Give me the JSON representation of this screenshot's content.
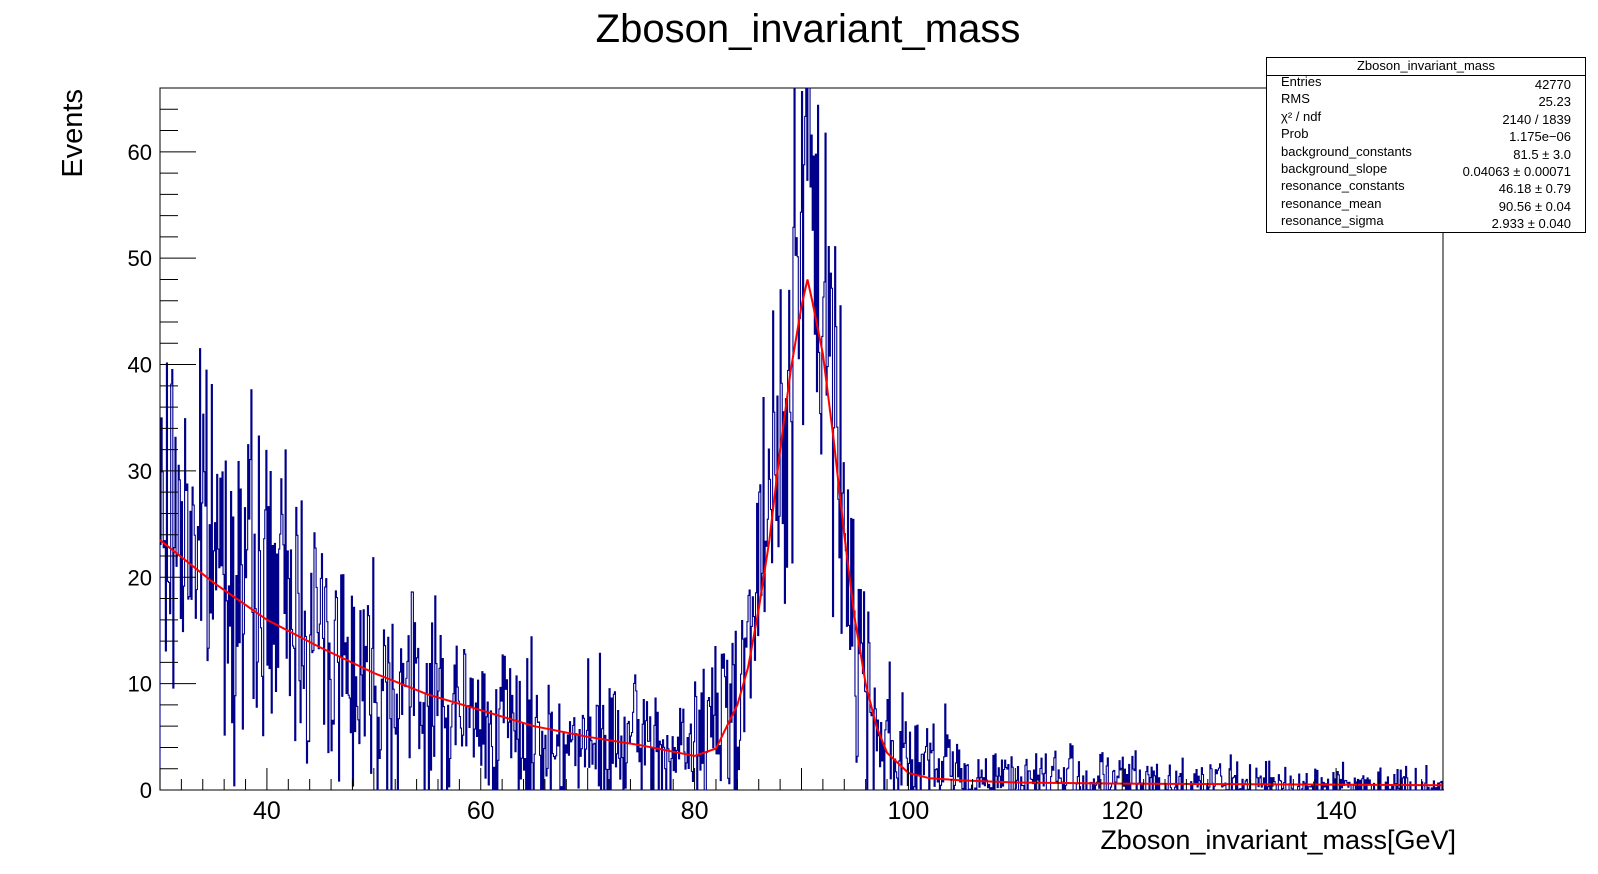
{
  "chart_data": {
    "type": "histogram",
    "title": "Zboson_invariant_mass",
    "xlabel": "Zboson_invariant_mass[GeV]",
    "ylabel": "Events",
    "xlim": [
      30,
      150
    ],
    "ylim": [
      0,
      66
    ],
    "x_ticks": [
      40,
      60,
      80,
      100,
      120,
      140
    ],
    "y_ticks": [
      0,
      10,
      20,
      30,
      40,
      50,
      60
    ],
    "histogram_color": "#00008b",
    "fit_color": "#ff0000",
    "series": [
      {
        "kind": "histogram",
        "bin_centers": [
          30,
          32,
          34,
          36,
          38,
          40,
          42,
          44,
          46,
          48,
          50,
          52,
          54,
          56,
          58,
          60,
          62,
          64,
          66,
          68,
          70,
          72,
          74,
          76,
          78,
          80,
          82,
          84,
          86,
          87,
          88,
          89,
          90,
          91,
          92,
          93,
          94,
          95,
          96,
          98,
          100,
          102,
          104,
          106,
          110,
          115,
          120,
          125,
          130,
          135,
          140,
          145,
          150
        ],
        "values": [
          24,
          26,
          24,
          22,
          20,
          19,
          18,
          16,
          13,
          12,
          11,
          10,
          9,
          8,
          7,
          6,
          6,
          5,
          5,
          4,
          4,
          4,
          4,
          4,
          3,
          4,
          6,
          10,
          19,
          26,
          33,
          42,
          52,
          54,
          48,
          36,
          25,
          17,
          10,
          5,
          3,
          2,
          2,
          1,
          1,
          1,
          0.8,
          0.6,
          0.5,
          0.4,
          0.3,
          0.3,
          0.3
        ]
      },
      {
        "kind": "fit",
        "x": [
          30,
          35,
          40,
          45,
          50,
          55,
          60,
          65,
          70,
          75,
          80,
          82,
          84,
          85,
          86,
          87,
          88,
          89,
          90,
          90.56,
          91,
          92,
          93,
          94,
          95,
          96,
          97,
          98,
          100,
          102,
          105,
          110,
          120,
          130,
          140,
          150
        ],
        "y": [
          23.5,
          19.5,
          16,
          13.4,
          11,
          9,
          7.5,
          6,
          5,
          4.2,
          3.2,
          3.9,
          8,
          11.5,
          17,
          23.5,
          32,
          39.5,
          45.5,
          48,
          46,
          41,
          33,
          24,
          16,
          10,
          6,
          3.5,
          1.6,
          1.1,
          0.9,
          0.7,
          0.6,
          0.55,
          0.5,
          0.45
        ]
      }
    ],
    "stats_box": {
      "title": "Zboson_invariant_mass",
      "rows": [
        {
          "key": "Entries",
          "value": "42770"
        },
        {
          "key": "RMS",
          "value": "25.23"
        },
        {
          "key": "χ² / ndf",
          "value": "2140 / 1839"
        },
        {
          "key": "Prob",
          "value": "1.175e−06"
        },
        {
          "key": "background_constants",
          "value": "81.5 ± 3.0"
        },
        {
          "key": "background_slope",
          "value": "0.04063 ± 0.00071"
        },
        {
          "key": "resonance_constants",
          "value": "46.18 ± 0.79"
        },
        {
          "key": "resonance_mean",
          "value": "90.56 ± 0.04"
        },
        {
          "key": "resonance_sigma",
          "value": "2.933 ± 0.040"
        }
      ]
    }
  }
}
